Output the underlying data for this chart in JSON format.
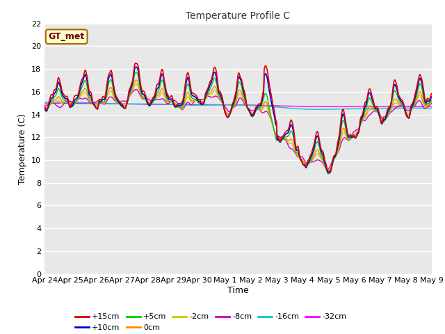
{
  "title": "Temperature Profile C",
  "xlabel": "Time",
  "ylabel": "Temperature (C)",
  "ylim": [
    0,
    22
  ],
  "yticks": [
    0,
    2,
    4,
    6,
    8,
    10,
    12,
    14,
    16,
    18,
    20,
    22
  ],
  "x_labels": [
    "Apr 24",
    "Apr 25",
    "Apr 26",
    "Apr 27",
    "Apr 28",
    "Apr 29",
    "Apr 30",
    "May 1",
    "May 2",
    "May 3",
    "May 4",
    "May 5",
    "May 6",
    "May 7",
    "May 8",
    "May 9"
  ],
  "plot_bg_color": "#e8e8e8",
  "legend_label": "GT_met",
  "series_colors": {
    "+15cm": "#dd0000",
    "+10cm": "#0000dd",
    "+5cm": "#00cc00",
    "0cm": "#ff8800",
    "-2cm": "#cccc00",
    "-8cm": "#cc00cc",
    "-16cm": "#00cccc",
    "-32cm": "#ff00ff"
  }
}
